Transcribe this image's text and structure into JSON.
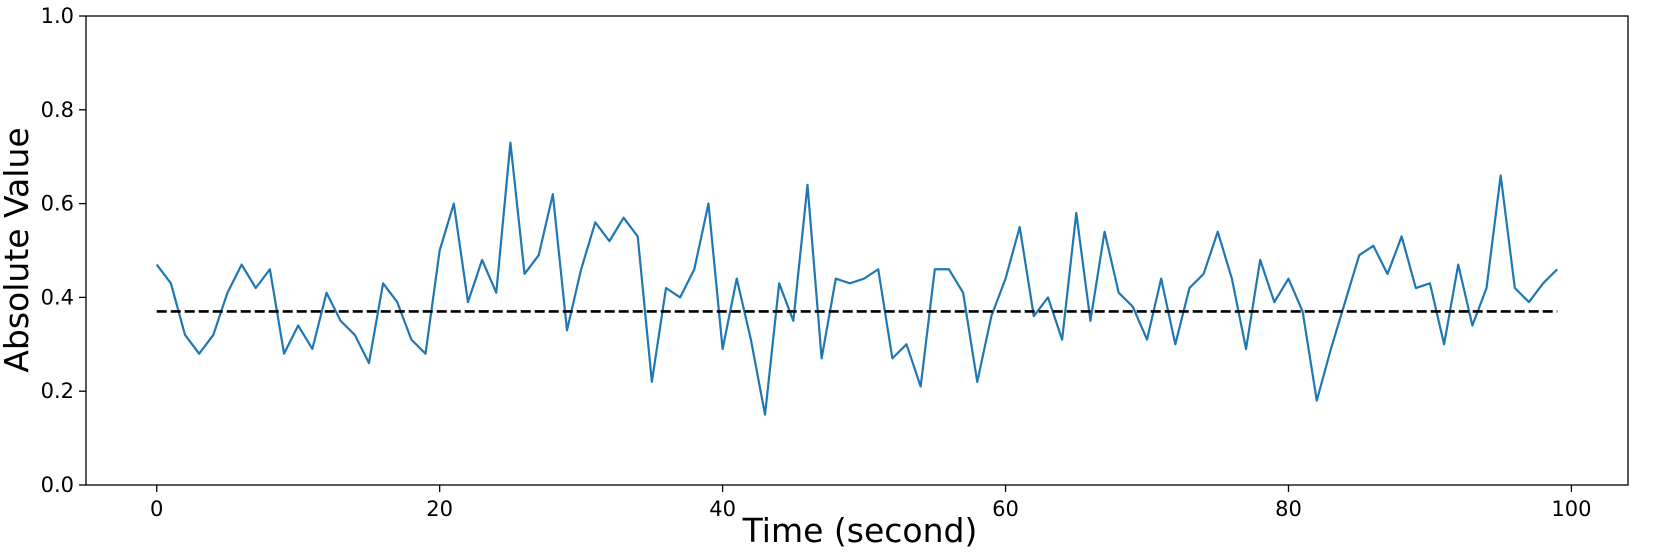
{
  "chart_data": {
    "type": "line",
    "title": "",
    "xlabel": "Time (second)",
    "ylabel": "Absolute Value",
    "xlim": [
      -5,
      104
    ],
    "ylim": [
      0.0,
      1.0
    ],
    "grid": false,
    "x_ticks": [
      0,
      20,
      40,
      60,
      80,
      100
    ],
    "x_tick_labels": [
      "0",
      "20",
      "40",
      "60",
      "80",
      "100"
    ],
    "y_ticks": [
      0.0,
      0.2,
      0.4,
      0.6,
      0.8,
      1.0
    ],
    "y_tick_labels": [
      "0.0",
      "0.2",
      "0.4",
      "0.6",
      "0.8",
      "1.0"
    ],
    "series": [
      {
        "color": "#1f77b4",
        "style": "solid",
        "x": [
          0,
          1,
          2,
          3,
          4,
          5,
          6,
          7,
          8,
          9,
          10,
          11,
          12,
          13,
          14,
          15,
          16,
          17,
          18,
          19,
          20,
          21,
          22,
          23,
          24,
          25,
          26,
          27,
          28,
          29,
          30,
          31,
          32,
          33,
          34,
          35,
          36,
          37,
          38,
          39,
          40,
          41,
          42,
          43,
          44,
          45,
          46,
          47,
          48,
          49,
          50,
          51,
          52,
          53,
          54,
          55,
          56,
          57,
          58,
          59,
          60,
          61,
          62,
          63,
          64,
          65,
          66,
          67,
          68,
          69,
          70,
          71,
          72,
          73,
          74,
          75,
          76,
          77,
          78,
          79,
          80,
          81,
          82,
          83,
          84,
          85,
          86,
          87,
          88,
          89,
          90,
          91,
          92,
          93,
          94,
          95,
          96,
          97,
          98,
          99
        ],
        "values": [
          0.47,
          0.43,
          0.32,
          0.28,
          0.32,
          0.41,
          0.47,
          0.42,
          0.46,
          0.28,
          0.34,
          0.29,
          0.41,
          0.35,
          0.32,
          0.26,
          0.43,
          0.39,
          0.31,
          0.28,
          0.5,
          0.6,
          0.39,
          0.48,
          0.41,
          0.73,
          0.45,
          0.49,
          0.62,
          0.33,
          0.46,
          0.56,
          0.52,
          0.57,
          0.53,
          0.22,
          0.42,
          0.4,
          0.46,
          0.6,
          0.29,
          0.44,
          0.31,
          0.15,
          0.43,
          0.35,
          0.64,
          0.27,
          0.44,
          0.43,
          0.44,
          0.46,
          0.27,
          0.3,
          0.21,
          0.46,
          0.46,
          0.41,
          0.22,
          0.36,
          0.44,
          0.55,
          0.36,
          0.4,
          0.31,
          0.58,
          0.35,
          0.54,
          0.41,
          0.38,
          0.31,
          0.44,
          0.3,
          0.42,
          0.45,
          0.54,
          0.44,
          0.29,
          0.48,
          0.39,
          0.44,
          0.37,
          0.18,
          0.29,
          0.39,
          0.49,
          0.51,
          0.45,
          0.53,
          0.42,
          0.43,
          0.3,
          0.47,
          0.34,
          0.42,
          0.66,
          0.42,
          0.39,
          0.43,
          0.46
        ]
      },
      {
        "color": "#000000",
        "style": "dashed",
        "x": [
          0,
          99
        ],
        "values": [
          0.37,
          0.37
        ]
      }
    ]
  }
}
